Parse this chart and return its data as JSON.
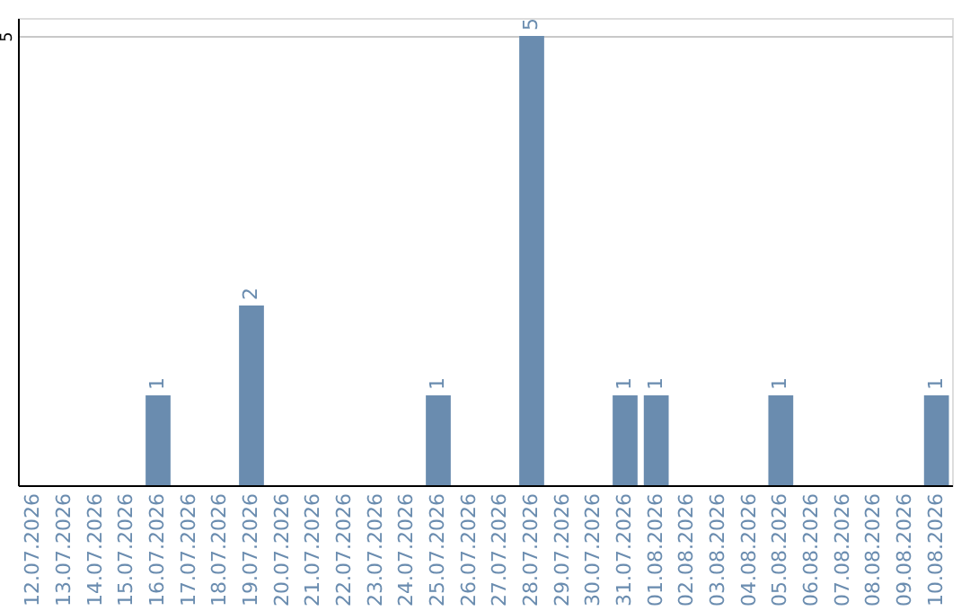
{
  "chart_data": {
    "type": "bar",
    "categories": [
      "12.07.2026",
      "13.07.2026",
      "14.07.2026",
      "15.07.2026",
      "16.07.2026",
      "17.07.2026",
      "18.07.2026",
      "19.07.2026",
      "20.07.2026",
      "21.07.2026",
      "22.07.2026",
      "23.07.2026",
      "24.07.2026",
      "25.07.2026",
      "26.07.2026",
      "27.07.2026",
      "28.07.2026",
      "29.07.2026",
      "30.07.2026",
      "31.07.2026",
      "01.08.2026",
      "02.08.2026",
      "03.08.2026",
      "04.08.2026",
      "05.08.2026",
      "06.08.2026",
      "07.08.2026",
      "08.08.2026",
      "09.08.2026",
      "10.08.2026"
    ],
    "values": [
      0,
      0,
      0,
      0,
      1,
      0,
      0,
      2,
      0,
      0,
      0,
      0,
      0,
      1,
      0,
      0,
      5,
      0,
      0,
      1,
      1,
      0,
      0,
      0,
      1,
      0,
      0,
      0,
      0,
      1
    ],
    "value_labels": [
      null,
      null,
      null,
      null,
      "1",
      null,
      null,
      "2",
      null,
      null,
      null,
      null,
      null,
      "1",
      null,
      null,
      "5",
      null,
      null,
      "1",
      "1",
      null,
      null,
      null,
      "1",
      null,
      null,
      null,
      null,
      "1"
    ],
    "color": "#6a8caf",
    "ylim": [
      0,
      5.2
    ],
    "yticks": [
      {
        "value": 0,
        "label": null
      },
      5
    ],
    "grid": "y"
  }
}
